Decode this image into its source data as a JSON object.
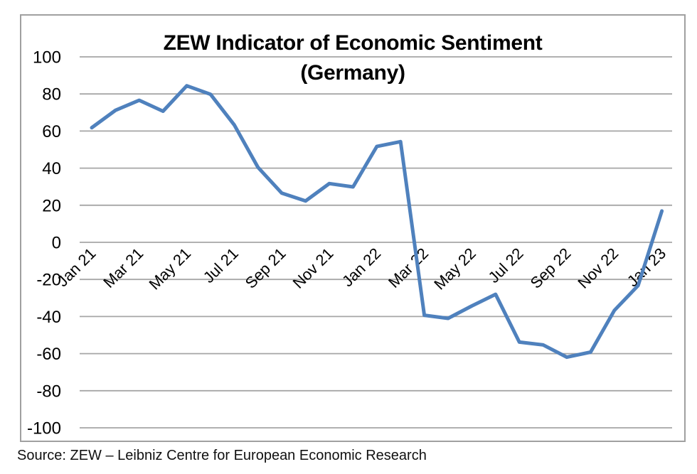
{
  "page": {
    "background": "#ffffff",
    "source_caption": "Source: ZEW – Leibniz Centre for European Economic Research"
  },
  "chart_data": {
    "type": "line",
    "title": "ZEW Indicator of Economic Sentiment",
    "subtitle": "(Germany)",
    "x": [
      "Jan 21",
      "Feb 21",
      "Mar 21",
      "Apr 21",
      "May 21",
      "Jun 21",
      "Jul 21",
      "Aug 21",
      "Sep 21",
      "Oct 21",
      "Nov 21",
      "Dec 21",
      "Jan 22",
      "Feb 22",
      "Mar 22",
      "Apr 22",
      "May 22",
      "Jun 22",
      "Jul 22",
      "Aug 22",
      "Sep 22",
      "Oct 22",
      "Nov 22",
      "Dec 22",
      "Jan 23"
    ],
    "values": [
      61.8,
      71.2,
      76.6,
      70.7,
      84.4,
      79.8,
      63.3,
      40.4,
      26.5,
      22.3,
      31.7,
      29.9,
      51.7,
      54.3,
      -39.3,
      -41.0,
      -34.3,
      -28.0,
      -53.8,
      -55.3,
      -61.9,
      -59.2,
      -36.7,
      -23.3,
      16.9
    ],
    "x_tick_labels": [
      "Jan 21",
      "Mar 21",
      "May 21",
      "Jul 21",
      "Sep 21",
      "Nov 21",
      "Jan 22",
      "Mar 22",
      "May 22",
      "Jul 22",
      "Sep 22",
      "Nov 22",
      "Jan 23"
    ],
    "x_tick_every": 2,
    "ylim": [
      -100,
      100
    ],
    "y_tick_step": 20,
    "grid": "horizontal",
    "legend": "none",
    "colors": {
      "line": "#4F81BD",
      "gridline": "#A6A6A6",
      "frame_border": "#A0A0A0",
      "text": "#000000"
    }
  }
}
